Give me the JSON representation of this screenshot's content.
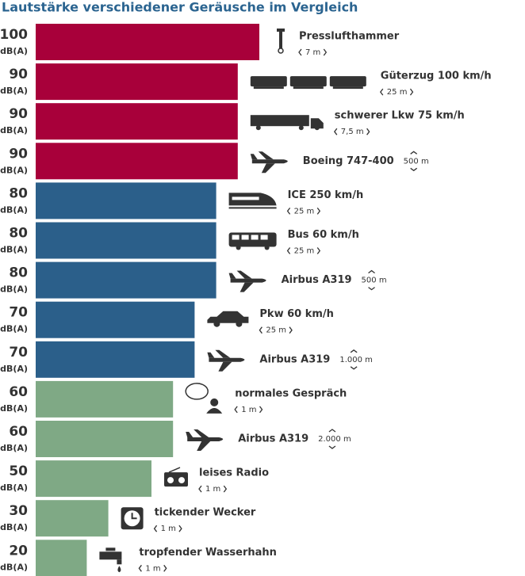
{
  "chart_data": {
    "type": "bar",
    "title": "Lautstärke verschiedener Geräusche im Vergleich",
    "unit": "dB(A)",
    "categories": [
      "Presslufthammer",
      "Güterzug 100 km/h",
      "schwerer Lkw 75 km/h",
      "Boeing 747-400",
      "ICE 250 km/h",
      "Bus 60 km/h",
      "Airbus A319",
      "Pkw 60 km/h",
      "Airbus A319",
      "normales Gespräch",
      "Airbus A319",
      "leises Radio",
      "tickender Wecker",
      "tropfender Wasserhahn"
    ],
    "values": [
      100,
      90,
      90,
      90,
      80,
      80,
      80,
      70,
      70,
      60,
      60,
      50,
      30,
      20
    ],
    "colors": [
      "#a8003a",
      "#a8003a",
      "#a8003a",
      "#a8003a",
      "#2b5f8a",
      "#2b5f8a",
      "#2b5f8a",
      "#2b5f8a",
      "#2b5f8a",
      "#7fa985",
      "#7fa985",
      "#7fa985",
      "#7fa985",
      "#7fa985"
    ],
    "distances": [
      "7 m",
      "25 m",
      "7,5 m",
      "500 m",
      "25 m",
      "25 m",
      "500 m",
      "25 m",
      "1.000 m",
      "1 m",
      "2.000 m",
      "1 m",
      "1 m",
      "1 m"
    ],
    "distance_vertical": [
      false,
      false,
      false,
      true,
      false,
      false,
      true,
      false,
      true,
      false,
      true,
      false,
      false,
      false
    ]
  }
}
